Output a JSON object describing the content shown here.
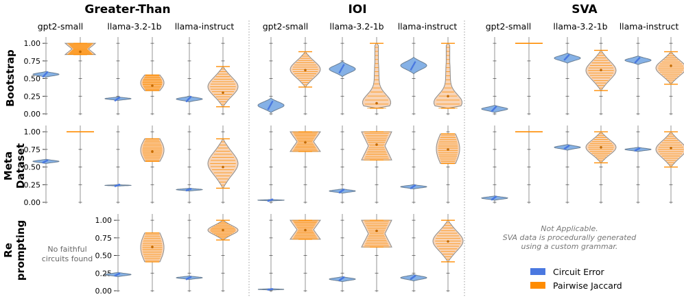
{
  "chart_data": {
    "type": "violin",
    "groups": [
      "Greater-Than",
      "IOI",
      "SVA"
    ],
    "models": [
      "gpt2-small",
      "llama-3.2-1b",
      "llama-instruct"
    ],
    "rows": [
      {
        "id": "bootstrap",
        "label": [
          "Bootstrap"
        ]
      },
      {
        "id": "meta",
        "label": [
          "Meta",
          "Dataset"
        ]
      },
      {
        "id": "reprompting",
        "label": [
          "Re",
          "prompting"
        ]
      }
    ],
    "series": [
      {
        "name": "Circuit Error",
        "color": "#4a78e0",
        "fill": "#85b1e6"
      },
      {
        "name": "Pairwise Jaccard",
        "color": "#ff8c00",
        "fill": "#f8d4b6"
      }
    ],
    "yticks": [
      "0.00",
      "0.25",
      "0.50",
      "0.75",
      "1.00"
    ],
    "ylim": [
      0,
      1.05
    ],
    "notes": {
      "no_faithful": [
        "No faithful",
        "circuits found"
      ],
      "not_applicable": [
        "Not Applicable.",
        "SVA data is procedurally generated",
        "using a custom grammar."
      ]
    },
    "panels": [
      {
        "row": 0,
        "group": 0,
        "model": 0,
        "error": {
          "center": 0.56,
          "spread": 0.03,
          "lo": 0.52,
          "hi": 0.6
        },
        "jaccard": {
          "center": 0.88,
          "lo": 0.84,
          "hi": 1.0,
          "shape": "hourglass"
        }
      },
      {
        "row": 0,
        "group": 0,
        "model": 1,
        "error": {
          "center": 0.21,
          "spread": 0.02,
          "lo": 0.19,
          "hi": 0.24
        },
        "jaccard": {
          "center": 0.4,
          "lo": 0.33,
          "hi": 0.55,
          "shape": "block"
        }
      },
      {
        "row": 0,
        "group": 0,
        "model": 2,
        "error": {
          "center": 0.21,
          "spread": 0.03,
          "lo": 0.17,
          "hi": 0.25
        },
        "jaccard": {
          "center": 0.3,
          "lo": 0.1,
          "hi": 0.67,
          "shape": "broad"
        }
      },
      {
        "row": 0,
        "group": 1,
        "model": 0,
        "error": {
          "center": 0.12,
          "spread": 0.05,
          "lo": 0.02,
          "hi": 0.22
        },
        "jaccard": {
          "center": 0.62,
          "lo": 0.38,
          "hi": 0.88,
          "shape": "broad"
        }
      },
      {
        "row": 0,
        "group": 1,
        "model": 1,
        "error": {
          "center": 0.64,
          "spread": 0.05,
          "lo": 0.53,
          "hi": 0.74
        },
        "jaccard": {
          "center": 0.15,
          "lo": 0.08,
          "hi": 1.0,
          "shape": "bottom-heavy"
        }
      },
      {
        "row": 0,
        "group": 1,
        "model": 2,
        "error": {
          "center": 0.68,
          "spread": 0.05,
          "lo": 0.57,
          "hi": 0.8
        },
        "jaccard": {
          "center": 0.25,
          "lo": 0.08,
          "hi": 1.0,
          "shape": "bottom-heavy"
        }
      },
      {
        "row": 0,
        "group": 2,
        "model": 0,
        "error": {
          "center": 0.07,
          "spread": 0.03,
          "lo": 0.02,
          "hi": 0.12
        },
        "jaccard": {
          "center": 1.0,
          "lo": 1.0,
          "hi": 1.0,
          "shape": "line"
        }
      },
      {
        "row": 0,
        "group": 2,
        "model": 1,
        "error": {
          "center": 0.8,
          "spread": 0.03,
          "lo": 0.72,
          "hi": 0.86
        },
        "jaccard": {
          "center": 0.62,
          "lo": 0.33,
          "hi": 0.9,
          "shape": "broad"
        }
      },
      {
        "row": 0,
        "group": 2,
        "model": 2,
        "error": {
          "center": 0.76,
          "spread": 0.03,
          "lo": 0.7,
          "hi": 0.82
        },
        "jaccard": {
          "center": 0.68,
          "lo": 0.42,
          "hi": 0.88,
          "shape": "broad"
        }
      },
      {
        "row": 1,
        "group": 0,
        "model": 0,
        "error": {
          "center": 0.58,
          "spread": 0.015,
          "lo": 0.55,
          "hi": 0.61
        },
        "jaccard": {
          "center": 1.0,
          "lo": 1.0,
          "hi": 1.0,
          "shape": "line"
        }
      },
      {
        "row": 1,
        "group": 0,
        "model": 1,
        "error": {
          "center": 0.24,
          "spread": 0.01,
          "lo": 0.23,
          "hi": 0.25
        },
        "jaccard": {
          "center": 0.72,
          "lo": 0.58,
          "hi": 0.9,
          "shape": "block"
        }
      },
      {
        "row": 1,
        "group": 0,
        "model": 2,
        "error": {
          "center": 0.18,
          "spread": 0.01,
          "lo": 0.16,
          "hi": 0.2
        },
        "jaccard": {
          "center": 0.5,
          "lo": 0.2,
          "hi": 0.9,
          "shape": "broad"
        }
      },
      {
        "row": 1,
        "group": 1,
        "model": 0,
        "error": {
          "center": 0.03,
          "spread": 0.01,
          "lo": 0.02,
          "hi": 0.04
        },
        "jaccard": {
          "center": 0.85,
          "lo": 0.72,
          "hi": 1.0,
          "shape": "hourglass"
        }
      },
      {
        "row": 1,
        "group": 1,
        "model": 1,
        "error": {
          "center": 0.16,
          "spread": 0.02,
          "lo": 0.13,
          "hi": 0.19
        },
        "jaccard": {
          "center": 0.82,
          "lo": 0.6,
          "hi": 1.0,
          "shape": "hourglass"
        }
      },
      {
        "row": 1,
        "group": 1,
        "model": 2,
        "error": {
          "center": 0.22,
          "spread": 0.02,
          "lo": 0.19,
          "hi": 0.25
        },
        "jaccard": {
          "center": 0.75,
          "lo": 0.55,
          "hi": 0.97,
          "shape": "block"
        }
      },
      {
        "row": 1,
        "group": 2,
        "model": 0,
        "error": {
          "center": 0.06,
          "spread": 0.02,
          "lo": 0.03,
          "hi": 0.09
        },
        "jaccard": {
          "center": 1.0,
          "lo": 1.0,
          "hi": 1.0,
          "shape": "line"
        }
      },
      {
        "row": 1,
        "group": 2,
        "model": 1,
        "error": {
          "center": 0.78,
          "spread": 0.02,
          "lo": 0.74,
          "hi": 0.82
        },
        "jaccard": {
          "center": 0.78,
          "lo": 0.56,
          "hi": 1.0,
          "shape": "broad"
        }
      },
      {
        "row": 1,
        "group": 2,
        "model": 2,
        "error": {
          "center": 0.75,
          "spread": 0.015,
          "lo": 0.72,
          "hi": 0.78
        },
        "jaccard": {
          "center": 0.77,
          "lo": 0.5,
          "hi": 1.0,
          "shape": "broad"
        }
      },
      {
        "row": 2,
        "group": 0,
        "model": 1,
        "error": {
          "center": 0.23,
          "spread": 0.015,
          "lo": 0.2,
          "hi": 0.26
        },
        "jaccard": {
          "center": 0.62,
          "lo": 0.41,
          "hi": 0.82,
          "shape": "block"
        }
      },
      {
        "row": 2,
        "group": 0,
        "model": 2,
        "error": {
          "center": 0.18,
          "spread": 0.015,
          "lo": 0.16,
          "hi": 0.21
        },
        "jaccard": {
          "center": 0.86,
          "lo": 0.72,
          "hi": 1.0,
          "shape": "broad"
        }
      },
      {
        "row": 2,
        "group": 1,
        "model": 0,
        "error": {
          "center": 0.02,
          "spread": 0.005,
          "lo": 0.01,
          "hi": 0.03
        },
        "jaccard": {
          "center": 0.86,
          "lo": 0.73,
          "hi": 1.0,
          "shape": "hourglass"
        }
      },
      {
        "row": 2,
        "group": 1,
        "model": 1,
        "error": {
          "center": 0.17,
          "spread": 0.02,
          "lo": 0.13,
          "hi": 0.2
        },
        "jaccard": {
          "center": 0.85,
          "lo": 0.62,
          "hi": 1.0,
          "shape": "hourglass"
        }
      },
      {
        "row": 2,
        "group": 1,
        "model": 2,
        "error": {
          "center": 0.19,
          "spread": 0.02,
          "lo": 0.14,
          "hi": 0.23
        },
        "jaccard": {
          "center": 0.7,
          "lo": 0.41,
          "hi": 1.0,
          "shape": "broad"
        }
      }
    ]
  }
}
